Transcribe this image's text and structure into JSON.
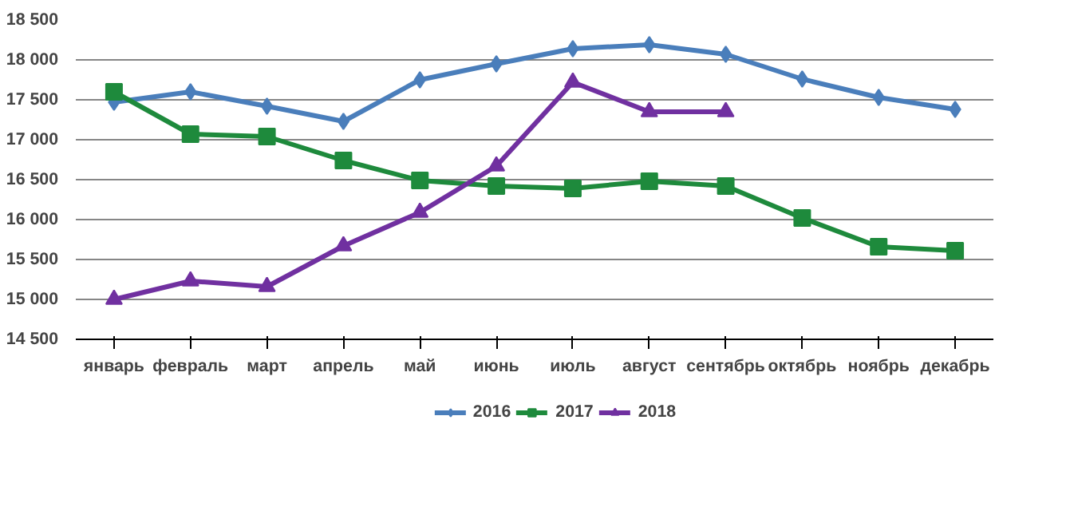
{
  "chart_data": {
    "type": "line",
    "categories": [
      "январь",
      "февраль",
      "март",
      "апрель",
      "май",
      "июнь",
      "июль",
      "август",
      "сентябрь",
      "октябрь",
      "ноябрь",
      "декабрь"
    ],
    "series": [
      {
        "name": "2016",
        "color": "#4a7ebb",
        "marker": "diamond",
        "values": [
          17470,
          17600,
          17420,
          17230,
          17750,
          17950,
          18140,
          18190,
          18070,
          17760,
          17530,
          17380
        ]
      },
      {
        "name": "2017",
        "color": "#1e8a3c",
        "marker": "square",
        "values": [
          17600,
          17070,
          17040,
          16740,
          16490,
          16420,
          16390,
          16480,
          16420,
          16020,
          15660,
          15610
        ]
      },
      {
        "name": "2018",
        "color": "#7030a0",
        "marker": "triangle",
        "values": [
          15000,
          15230,
          15160,
          15670,
          16090,
          16670,
          17720,
          17350,
          17350,
          null,
          null,
          null
        ]
      }
    ],
    "ylim": [
      14500,
      18500
    ],
    "yticks": [
      {
        "value": 14500,
        "label": "14 500"
      },
      {
        "value": 15000,
        "label": "15 000"
      },
      {
        "value": 15500,
        "label": "15 500"
      },
      {
        "value": 16000,
        "label": "16 000"
      },
      {
        "value": 16500,
        "label": "16 500"
      },
      {
        "value": 17000,
        "label": "17 000"
      },
      {
        "value": 17500,
        "label": "17 500"
      },
      {
        "value": 18000,
        "label": "18 000"
      },
      {
        "value": 18500,
        "label": "18 500"
      }
    ],
    "grid": "y",
    "legend": "bottom",
    "line_style": "solid"
  }
}
